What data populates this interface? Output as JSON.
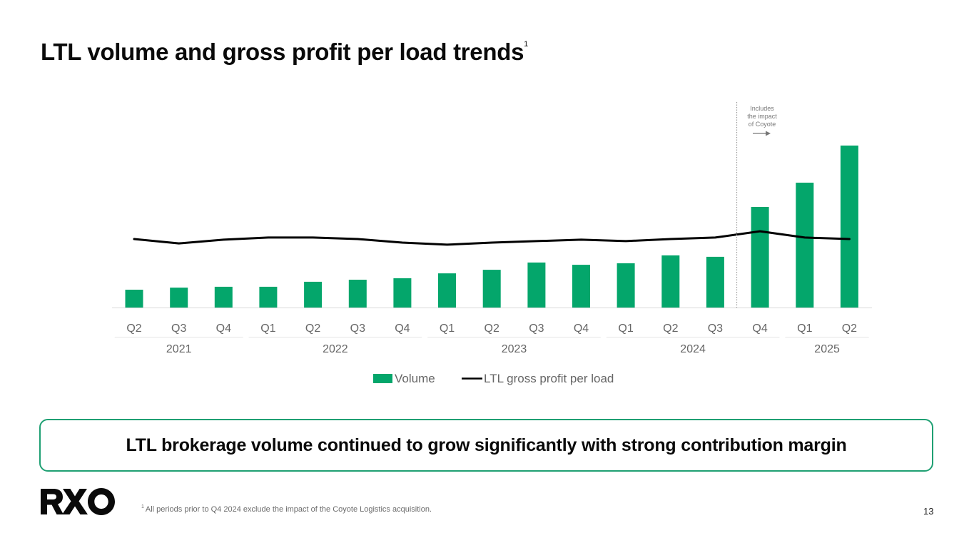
{
  "slide": {
    "title": "LTL volume and gross profit per load trends",
    "title_footnote_marker": "1",
    "callout": "LTL brokerage volume continued to grow significantly with strong contribution margin",
    "footnote_marker": "1",
    "footnote": "All periods prior to Q4 2024 exclude the impact of the Coyote Logistics acquisition.",
    "page_number": "13",
    "logo_text": "RXO",
    "colors": {
      "accent": "#04a66b",
      "line": "#000000",
      "callout_border": "#1fa073"
    }
  },
  "chart_data": {
    "type": "bar",
    "title": "LTL volume and gross profit per load trends",
    "xlabel": "",
    "ylabel": "",
    "y_axis_shown": false,
    "value_units": "relative index (Q2 2025 volume = 100), estimated from bar heights; no axis labels shown",
    "ylim": [
      0,
      100
    ],
    "grid": false,
    "categories": [
      "Q2",
      "Q3",
      "Q4",
      "Q1",
      "Q2",
      "Q3",
      "Q4",
      "Q1",
      "Q2",
      "Q3",
      "Q4",
      "Q1",
      "Q2",
      "Q3",
      "Q4",
      "Q1",
      "Q2"
    ],
    "year_groups": [
      {
        "label": "2021",
        "count": 3
      },
      {
        "label": "2022",
        "count": 4
      },
      {
        "label": "2023",
        "count": 4
      },
      {
        "label": "2024",
        "count": 4
      },
      {
        "label": "2025",
        "count": 2
      }
    ],
    "series": [
      {
        "name": "Volume",
        "type": "bar",
        "color": "#04a66b",
        "values": [
          11.0,
          12.3,
          12.8,
          12.8,
          15.9,
          17.2,
          18.1,
          21.1,
          23.3,
          27.8,
          26.4,
          27.3,
          32.2,
          31.3,
          62.1,
          77.1,
          100.0
        ]
      },
      {
        "name": "LTL gross profit per load",
        "type": "line",
        "color": "#000000",
        "values": [
          42.3,
          39.6,
          41.9,
          43.2,
          43.2,
          42.3,
          40.1,
          38.8,
          40.1,
          41.0,
          41.9,
          41.0,
          42.3,
          43.2,
          47.1,
          43.2,
          42.3
        ]
      }
    ],
    "annotation": {
      "text_lines": [
        "Includes",
        "the impact",
        "of Coyote"
      ],
      "divider_between": [
        "Q3 2024",
        "Q4 2024"
      ],
      "arrow": "right"
    },
    "legend": {
      "placement": "bottom-center",
      "entries": [
        "Volume",
        "LTL gross profit per load"
      ]
    }
  }
}
